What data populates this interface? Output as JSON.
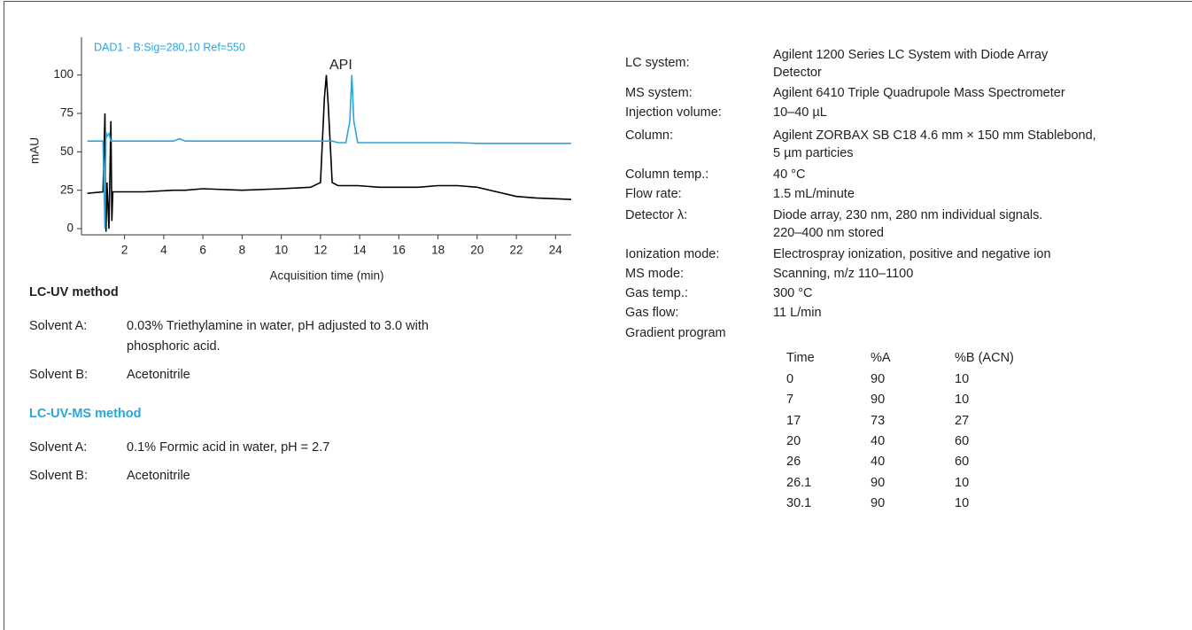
{
  "chart_data": {
    "type": "line",
    "ylabel": "mAU",
    "xlabel": "Acquisition time (min)",
    "annotations": [
      "DAD1 - B:Sig=280,10 Ref=550",
      "API"
    ],
    "x": [
      0.1,
      0.9,
      1.0,
      1.05,
      1.1,
      1.2,
      1.3,
      1.35,
      1.4,
      1.6,
      3,
      4.5,
      4.8,
      5.1,
      6,
      8,
      10,
      11.5,
      12.0,
      12.2,
      12.3,
      12.4,
      12.6,
      12.9,
      13.3,
      13.5,
      13.6,
      13.7,
      13.9,
      15,
      17,
      18,
      19,
      20,
      21,
      22,
      23,
      24.8
    ],
    "series": [
      {
        "color": "#000000",
        "values": [
          23,
          24,
          75,
          -2,
          30,
          0,
          70,
          5,
          24,
          24,
          24,
          25,
          25,
          25,
          26,
          25,
          26,
          27,
          30,
          85,
          100,
          80,
          30,
          28,
          28,
          28,
          28,
          28,
          28,
          27,
          27,
          28,
          28,
          27,
          24,
          21,
          20,
          19
        ]
      },
      {
        "color": "#2aa6dc",
        "values": [
          57,
          57,
          0,
          63,
          60,
          62,
          57,
          57,
          57,
          57,
          57,
          57,
          58.5,
          57,
          57,
          57,
          57,
          57,
          57,
          57,
          57,
          57,
          57,
          56,
          56,
          70,
          100,
          70,
          56,
          56,
          56,
          56,
          56,
          55.5,
          55.5,
          55.5,
          55.5,
          55.5
        ]
      }
    ],
    "xlim": [
      -0.2,
      24.8
    ],
    "ylim": [
      -4,
      120
    ],
    "xticks": [
      2,
      4,
      6,
      8,
      10,
      12,
      14,
      16,
      18,
      20,
      22,
      24
    ],
    "yticks": [
      0,
      25,
      50,
      75,
      100
    ]
  },
  "methods": [
    {
      "title": "LC-UV method",
      "rows": [
        {
          "label": "Solvent A:",
          "value": [
            "0.03% Triethylamine in water, pH adjusted to 3.0 with",
            "phosphoric acid."
          ]
        },
        {
          "label": "Solvent B:",
          "value": [
            "Acetonitrile"
          ]
        }
      ]
    },
    {
      "title": "LC-UV-MS method",
      "rows": [
        {
          "label": "Solvent A:",
          "value": [
            "0.1% Formic acid in water, pH = 2.7"
          ]
        },
        {
          "label": "Solvent B:",
          "value": [
            "Acetonitrile"
          ]
        }
      ]
    }
  ],
  "conditions": [
    {
      "label": "LC system:",
      "value": [
        "Agilent 1200 Series LC System with Diode Array",
        "Detector"
      ]
    },
    {
      "label": "MS system:",
      "value": [
        "Agilent 6410 Triple Quadrupole Mass Spectrometer"
      ]
    },
    {
      "label": "Injection volume:",
      "value": [
        "10–40 µL"
      ]
    },
    {
      "label": "Column:",
      "value": [
        "Agilent ZORBAX SB C18 4.6 mm × 150 mm Stablebond,",
        "5 µm particies"
      ]
    },
    {
      "label": "Column temp.:",
      "value": [
        "40 °C"
      ]
    },
    {
      "label": "Flow rate:",
      "value": [
        "1.5 mL/minute"
      ]
    },
    {
      "label": "Detector λ:",
      "value": [
        "Diode array, 230 nm, 280 nm individual signals.",
        "220–400 nm stored"
      ]
    },
    {
      "label": "Ionization mode:",
      "value": [
        "Electrospray ionization, positive and negative ion"
      ]
    },
    {
      "label": "MS mode:",
      "value": [
        "Scanning, m/z 110–1100"
      ]
    },
    {
      "label": "Gas temp.:",
      "value": [
        "300 °C"
      ]
    },
    {
      "label": "Gas flow:",
      "value": [
        "11 L/min"
      ]
    },
    {
      "label": "Gradient program",
      "value": []
    }
  ],
  "gradient": {
    "header": [
      "Time",
      "%A",
      "%B (ACN)"
    ],
    "rows": [
      [
        "0",
        "90",
        "10"
      ],
      [
        "7",
        "90",
        "10"
      ],
      [
        "17",
        "73",
        "27"
      ],
      [
        "20",
        "40",
        "60"
      ],
      [
        "26",
        "40",
        "60"
      ],
      [
        "26.1",
        "90",
        "10"
      ],
      [
        "30.1",
        "90",
        "10"
      ]
    ]
  }
}
